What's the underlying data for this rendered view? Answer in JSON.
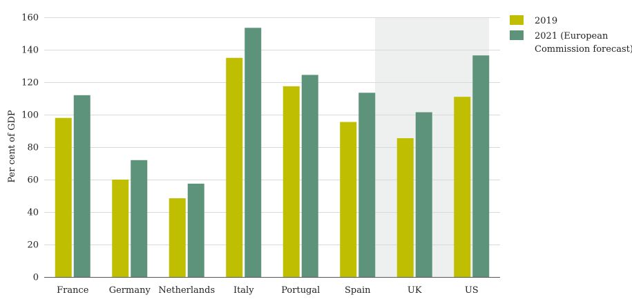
{
  "chart_data": {
    "type": "bar",
    "title": "",
    "xlabel": "",
    "ylabel": "Per cent of GDP",
    "ylim": [
      0,
      160
    ],
    "yticks": [
      0,
      20,
      40,
      60,
      80,
      100,
      120,
      140,
      160
    ],
    "grid": true,
    "legend_position": "top-right",
    "categories": [
      "France",
      "Germany",
      "Netherlands",
      "Italy",
      "Portugal",
      "Spain",
      "UK",
      "US"
    ],
    "highlighted_categories": [
      "UK",
      "US"
    ],
    "series": [
      {
        "name": "2019",
        "name_lines": [
          "2019"
        ],
        "color": "#bfbe00",
        "values": [
          98,
          60,
          48.5,
          135,
          117.5,
          95.5,
          85.5,
          111
        ]
      },
      {
        "name": "2021 (European Commission forecast)",
        "name_lines": [
          "2021 (European",
          "Commission forecast)"
        ],
        "color": "#5e937b",
        "values": [
          112,
          72,
          57.5,
          153.5,
          124.5,
          113.5,
          101.5,
          136.5
        ]
      }
    ],
    "colors": {
      "highlight_band": "#eef0ef",
      "gridline": "#d9d9d9",
      "axis": "#555555"
    }
  }
}
